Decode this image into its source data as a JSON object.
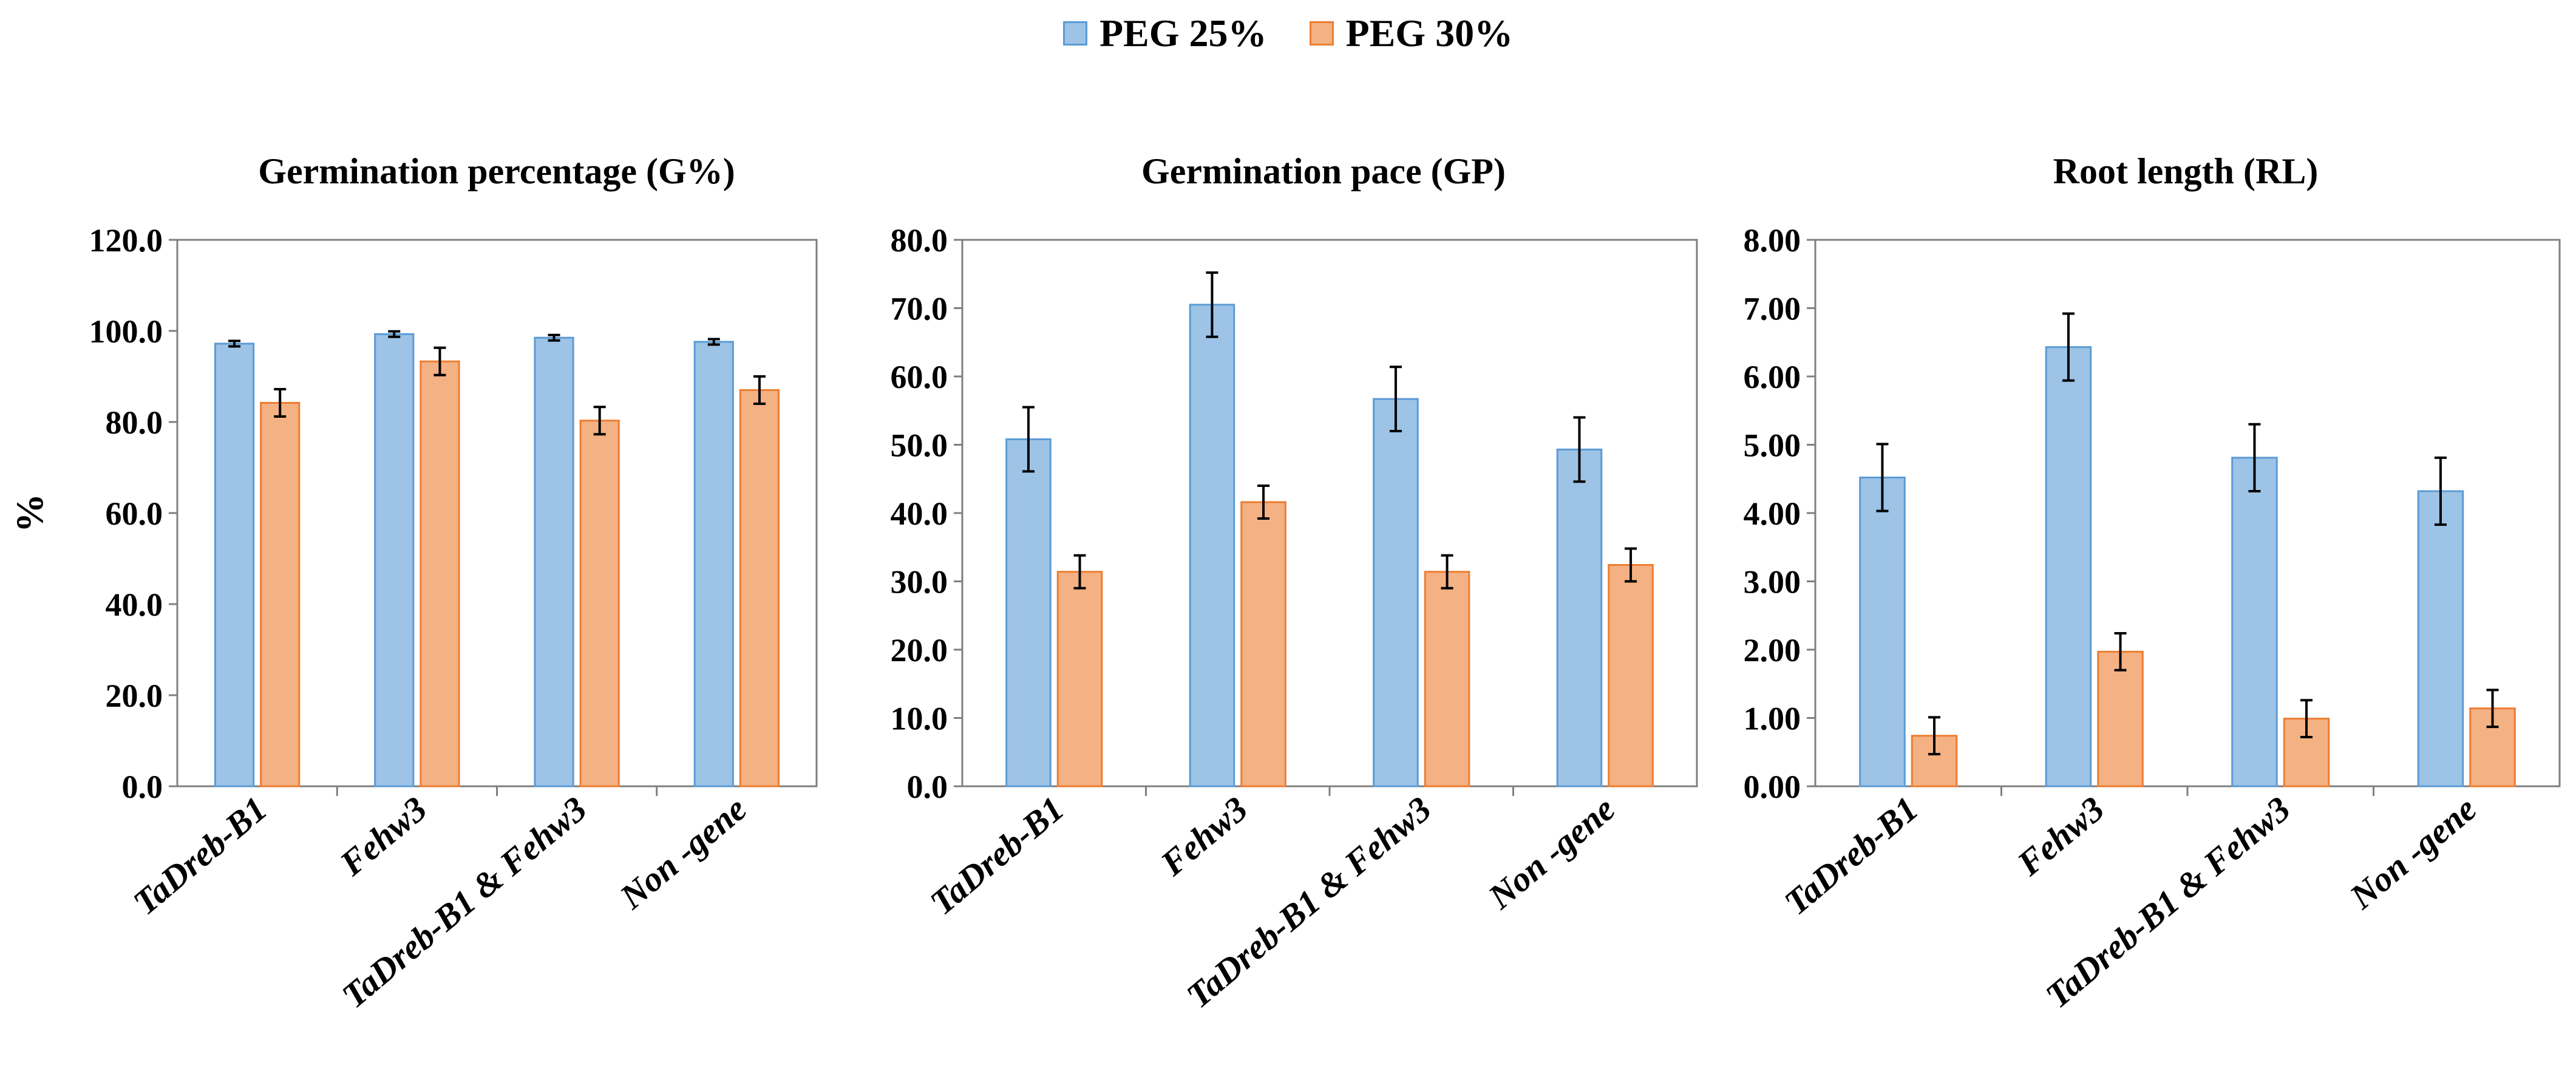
{
  "legend": [
    {
      "name": "PEG 25%",
      "color": "#9DC3E6",
      "border": "#5B9BD5"
    },
    {
      "name": "PEG 30%",
      "color": "#F4B183",
      "border": "#ED7D31"
    }
  ],
  "chart_data": [
    {
      "type": "bar",
      "title": "Germination  percentage (G%)",
      "ylabel": "%",
      "xlabel": "",
      "ylim": [
        0,
        120
      ],
      "yticks": [
        "0.0",
        "20.0",
        "40.0",
        "60.0",
        "80.0",
        "100.0",
        "120.0"
      ],
      "categories": [
        "TaDreb-B1",
        "Fehw3",
        "TaDreb-B1 & Fehw3",
        "Non -gene"
      ],
      "series": [
        {
          "name": "PEG 25%",
          "values": [
            97.2,
            99.3,
            98.5,
            97.6
          ],
          "errors": [
            0.6,
            0.6,
            0.6,
            0.6
          ]
        },
        {
          "name": "PEG 30%",
          "values": [
            84.2,
            93.3,
            80.3,
            87.0
          ],
          "errors": [
            3.0,
            3.0,
            3.0,
            3.0
          ]
        }
      ]
    },
    {
      "type": "bar",
      "title": "Germination  pace (GP)",
      "ylabel": "",
      "xlabel": "",
      "ylim": [
        0,
        80
      ],
      "yticks": [
        "0.0",
        "10.0",
        "20.0",
        "30.0",
        "40.0",
        "50.0",
        "60.0",
        "70.0",
        "80.0"
      ],
      "categories": [
        "TaDreb-B1",
        "Fehw3",
        "TaDreb-B1 & Fehw3",
        "Non -gene"
      ],
      "series": [
        {
          "name": "PEG 25%",
          "values": [
            50.8,
            70.5,
            56.7,
            49.3
          ],
          "errors": [
            4.7,
            4.7,
            4.7,
            4.7
          ]
        },
        {
          "name": "PEG 30%",
          "values": [
            31.4,
            41.6,
            31.4,
            32.4
          ],
          "errors": [
            2.4,
            2.4,
            2.4,
            2.4
          ]
        }
      ]
    },
    {
      "type": "bar",
      "title": "Root length (RL)",
      "ylabel": "",
      "xlabel": "",
      "ylim": [
        0,
        8
      ],
      "yticks": [
        "0.00",
        "1.00",
        "2.00",
        "3.00",
        "4.00",
        "5.00",
        "6.00",
        "7.00",
        "8.00"
      ],
      "categories": [
        "TaDreb-B1",
        "Fehw3",
        "TaDreb-B1 & Fehw3",
        "Non -gene"
      ],
      "series": [
        {
          "name": "PEG 25%",
          "values": [
            4.52,
            6.43,
            4.81,
            4.32
          ],
          "errors": [
            0.49,
            0.49,
            0.49,
            0.49
          ]
        },
        {
          "name": "PEG 30%",
          "values": [
            0.74,
            1.97,
            0.99,
            1.14
          ],
          "errors": [
            0.27,
            0.27,
            0.27,
            0.27
          ]
        }
      ]
    }
  ]
}
